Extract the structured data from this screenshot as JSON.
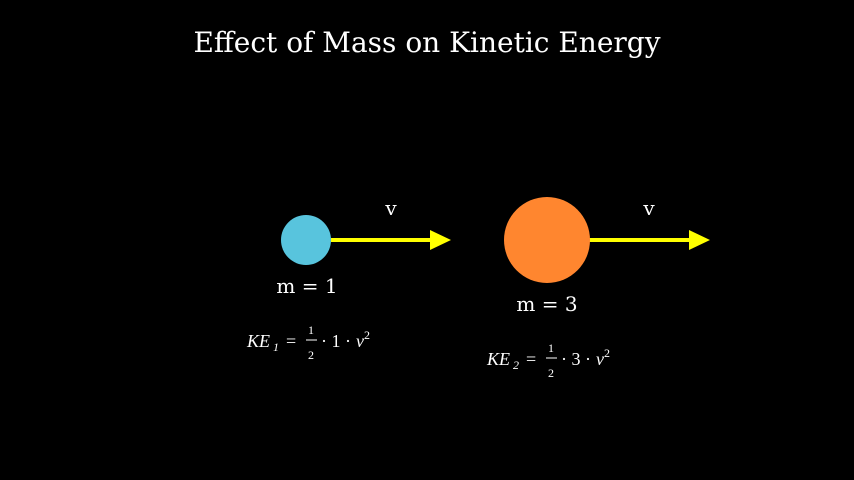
{
  "title": "Effect of Mass on Kinetic Energy",
  "objects": [
    {
      "velocity_label": "v",
      "mass_label": "m = 1",
      "formula": {
        "symbol": "KE",
        "subscript": "1",
        "equals": "=",
        "numerator": "1",
        "denominator": "2",
        "product": "· 1 ·",
        "variable": "v",
        "exponent": "2"
      }
    },
    {
      "velocity_label": "v",
      "mass_label": "m = 3",
      "formula": {
        "symbol": "KE",
        "subscript": "2",
        "equals": "=",
        "numerator": "1",
        "denominator": "2",
        "product": "· 3 ·",
        "variable": "v",
        "exponent": "2"
      }
    }
  ]
}
